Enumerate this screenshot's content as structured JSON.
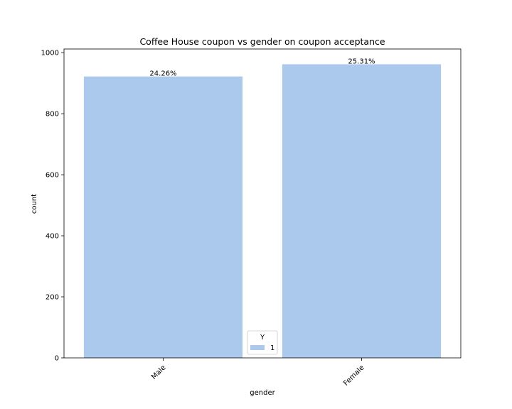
{
  "chart_data": {
    "type": "bar",
    "title": "Coffee House coupon vs gender on coupon acceptance",
    "xlabel": "gender",
    "ylabel": "count",
    "categories": [
      "Male",
      "Female"
    ],
    "series": [
      {
        "name": "1",
        "values": [
          922,
          962
        ],
        "data_labels": [
          "24.26%",
          "25.31%"
        ],
        "color": "#abc9ed"
      }
    ],
    "ylim": [
      0,
      1012
    ],
    "yticks": [
      0,
      200,
      400,
      600,
      800,
      1000
    ],
    "legend": {
      "title": "Y",
      "placement": "bottom-center"
    },
    "grid": false
  }
}
